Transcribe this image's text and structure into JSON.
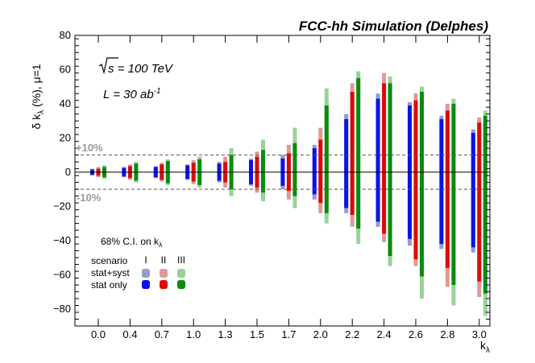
{
  "chart_data": {
    "type": "bar",
    "title": "FCC-hh Simulation (Delphes)",
    "annotations": {
      "sqrt_s_prefix": "s",
      "sqrt_s_value": "= 100 TeV",
      "lumi_prefix": "L = 30 ab",
      "lumi_exp": "-1",
      "ci_label": "68% C.I. on k",
      "ci_sub": "λ",
      "plus10": "+10%",
      "minus10": "-10%"
    },
    "xlabel": "k",
    "xlabel_sub": "λ",
    "ylabel": "δ k",
    "ylabel_sub": "λ",
    "ylabel_suffix": " (%), μ=1",
    "ylim": [
      -90,
      80
    ],
    "yticks": [
      "−80",
      "−60",
      "−40",
      "−20",
      "0",
      "20",
      "40",
      "60",
      "80"
    ],
    "reference_lines": [
      10,
      -10
    ],
    "categories": [
      "0.0",
      "0.4",
      "0.7",
      "1.0",
      "1.3",
      "1.5",
      "1.7",
      "2.0",
      "2.2",
      "2.4",
      "2.6",
      "2.8",
      "3.0"
    ],
    "legend": {
      "scenario_label": "scenario",
      "scenarios": [
        "I",
        "II",
        "III"
      ],
      "rows": [
        "stat+syst",
        "stat only"
      ]
    },
    "series": [
      {
        "name": "I",
        "color_stat": "#0a14e6",
        "color_syst": "#9a9ac8",
        "stat_syst_up": [
          2,
          3,
          3.5,
          4.5,
          6,
          8,
          10,
          16,
          34,
          46,
          41,
          33,
          25
        ],
        "stat_syst_down": [
          -2,
          -3,
          -3.5,
          -4.5,
          -6,
          -8,
          -10,
          -16,
          -24,
          -32,
          -43,
          -45,
          -47
        ],
        "stat_up": [
          1.5,
          2.5,
          3,
          4,
          5,
          7,
          8,
          14,
          31,
          43,
          39,
          31,
          23
        ],
        "stat_down": [
          -1.5,
          -2.5,
          -3,
          -4,
          -5,
          -7,
          -8,
          -13,
          -21,
          -29,
          -39,
          -42,
          -44
        ]
      },
      {
        "name": "II",
        "color_stat": "#dc0a0a",
        "color_syst": "#dc9a9a",
        "stat_syst_up": [
          3,
          4.5,
          5.5,
          7,
          9,
          12,
          16,
          26,
          52,
          58,
          46,
          40,
          32
        ],
        "stat_syst_down": [
          -3,
          -4.5,
          -5.5,
          -7,
          -9,
          -12,
          -16,
          -24,
          -32,
          -41,
          -55,
          -67,
          -73
        ],
        "stat_up": [
          2,
          3.5,
          4.5,
          5.5,
          6,
          9,
          11,
          19,
          47,
          52,
          42,
          36,
          29
        ],
        "stat_down": [
          -2,
          -3.5,
          -4.5,
          -5.5,
          -6,
          -9,
          -11,
          -18,
          -25,
          -36,
          -51,
          -56,
          -64
        ]
      },
      {
        "name": "III",
        "color_stat": "#0a8c0a",
        "color_syst": "#99d199",
        "stat_syst_up": [
          4,
          6,
          7.5,
          9,
          14,
          19,
          26,
          49,
          59,
          56,
          50,
          43,
          36
        ],
        "stat_syst_down": [
          -4,
          -6,
          -7.5,
          -9,
          -14,
          -17,
          -21,
          -30,
          -42,
          -55,
          -74,
          -78,
          -84
        ],
        "stat_up": [
          3,
          5,
          6.5,
          7.5,
          10,
          13,
          17,
          39,
          55,
          52,
          47,
          40,
          33
        ],
        "stat_down": [
          -3,
          -5,
          -6.5,
          -7.5,
          -10,
          -12,
          -14,
          -24,
          -33,
          -49,
          -61,
          -66,
          -71
        ]
      }
    ]
  }
}
